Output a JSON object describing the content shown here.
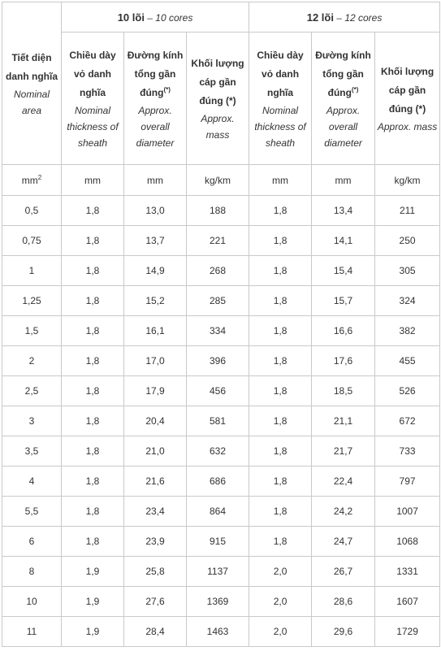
{
  "groups": [
    {
      "name": "10 lõi",
      "sep": " – ",
      "en": "10 cores"
    },
    {
      "name": "12 lõi",
      "sep": " – ",
      "en": "12 cores"
    }
  ],
  "area_header": {
    "vi": "Tiết diện danh nghĩa",
    "en": "Nominal area"
  },
  "columns": [
    {
      "vi": "Chiều dày vỏ danh nghĩa",
      "en": "Nominal thickness of sheath"
    },
    {
      "vi": "Đường kính tổng gần đúng",
      "mark": "(*)",
      "en": "Approx. overall diameter"
    },
    {
      "vi": "Khối lượng cáp gần đúng (*)",
      "en": "Approx. mass"
    }
  ],
  "units": {
    "area": "mm",
    "area_sup": "2",
    "thickness": "mm",
    "diameter": "mm",
    "mass": "kg/km"
  },
  "rows": [
    [
      "0,5",
      "1,8",
      "13,0",
      "188",
      "1,8",
      "13,4",
      "211"
    ],
    [
      "0,75",
      "1,8",
      "13,7",
      "221",
      "1,8",
      "14,1",
      "250"
    ],
    [
      "1",
      "1,8",
      "14,9",
      "268",
      "1,8",
      "15,4",
      "305"
    ],
    [
      "1,25",
      "1,8",
      "15,2",
      "285",
      "1,8",
      "15,7",
      "324"
    ],
    [
      "1,5",
      "1,8",
      "16,1",
      "334",
      "1,8",
      "16,6",
      "382"
    ],
    [
      "2",
      "1,8",
      "17,0",
      "396",
      "1,8",
      "17,6",
      "455"
    ],
    [
      "2,5",
      "1,8",
      "17,9",
      "456",
      "1,8",
      "18,5",
      "526"
    ],
    [
      "3",
      "1,8",
      "20,4",
      "581",
      "1,8",
      "21,1",
      "672"
    ],
    [
      "3,5",
      "1,8",
      "21,0",
      "632",
      "1,8",
      "21,7",
      "733"
    ],
    [
      "4",
      "1,8",
      "21,6",
      "686",
      "1,8",
      "22,4",
      "797"
    ],
    [
      "5,5",
      "1,8",
      "23,4",
      "864",
      "1,8",
      "24,2",
      "1007"
    ],
    [
      "6",
      "1,8",
      "23,9",
      "915",
      "1,8",
      "24,7",
      "1068"
    ],
    [
      "8",
      "1,9",
      "25,8",
      "1137",
      "2,0",
      "26,7",
      "1331"
    ],
    [
      "10",
      "1,9",
      "27,6",
      "1369",
      "2,0",
      "28,6",
      "1607"
    ],
    [
      "11",
      "1,9",
      "28,4",
      "1463",
      "2,0",
      "29,6",
      "1729"
    ]
  ]
}
